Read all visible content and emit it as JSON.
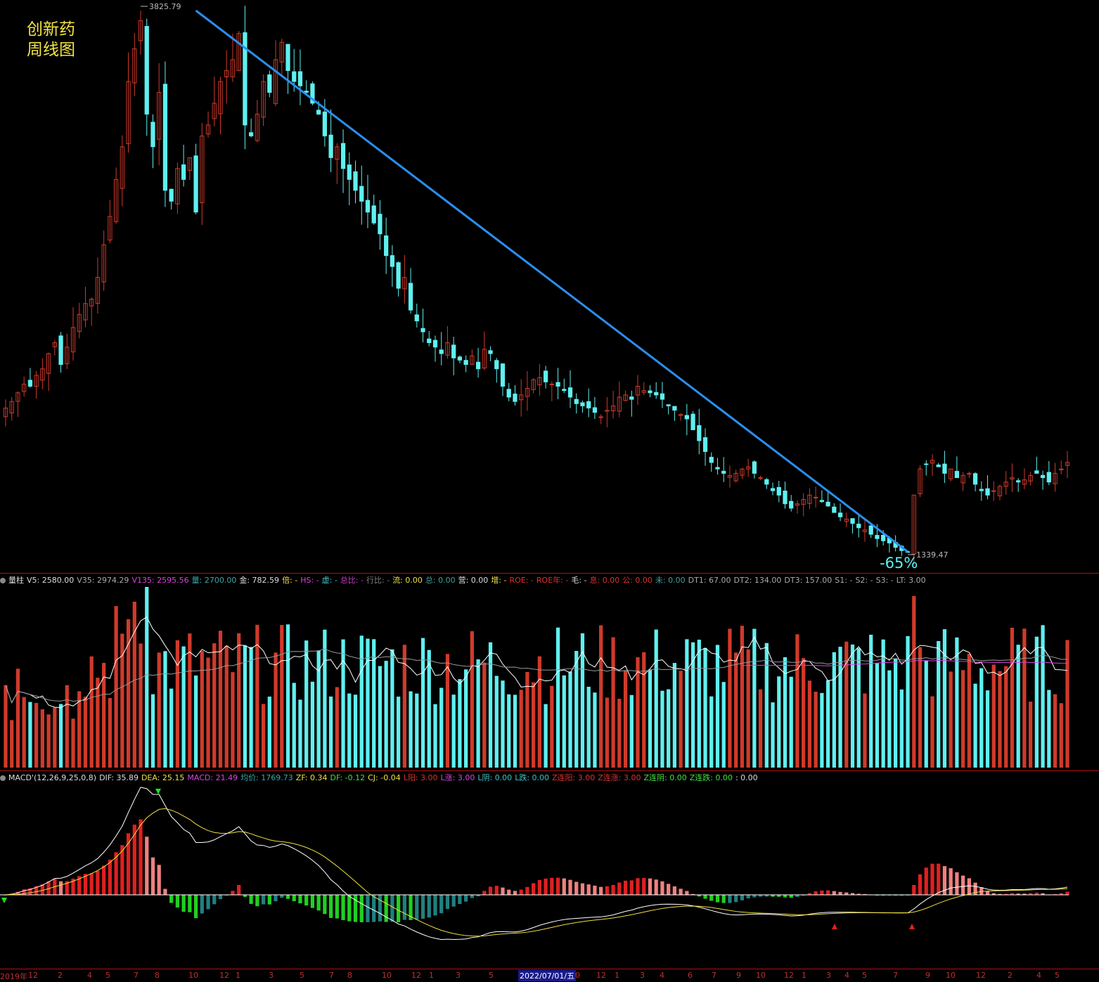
{
  "title": {
    "line1": "创新药",
    "line2": "周线图"
  },
  "annotations": {
    "high_label": "3825.79",
    "low_label": "1339.47",
    "drop_label": "-65%"
  },
  "volume_bar": {
    "items": [
      {
        "t": "量柱",
        "c": "#dddddd"
      },
      {
        "t": "V5: 2580.00",
        "c": "#dddddd"
      },
      {
        "t": "V35: 2974.29",
        "c": "#aaaaaa"
      },
      {
        "t": "V135: 2595.56",
        "c": "#e040e0"
      },
      {
        "t": "量: 2700.00",
        "c": "#3aa8a8"
      },
      {
        "t": "金: 782.59",
        "c": "#dddddd"
      },
      {
        "t": "倍: -",
        "c": "#f0e040"
      },
      {
        "t": "HS: -",
        "c": "#e040e0"
      },
      {
        "t": "虚: -",
        "c": "#40c0c0"
      },
      {
        "t": "总比: -",
        "c": "#c040c0"
      },
      {
        "t": "行比: -",
        "c": "#808080"
      },
      {
        "t": "流: 0.00",
        "c": "#f0e040"
      },
      {
        "t": "总: 0.00",
        "c": "#40a0a0"
      },
      {
        "t": "营: 0.00",
        "c": "#dddddd"
      },
      {
        "t": "增: -",
        "c": "#f0e040"
      },
      {
        "t": "ROE: -",
        "c": "#e03030"
      },
      {
        "t": "ROE年: -",
        "c": "#e03030"
      },
      {
        "t": "毛: -",
        "c": "#dddddd"
      },
      {
        "t": "息: 0.00",
        "c": "#e03030"
      },
      {
        "t": "公: 0.00",
        "c": "#e03030"
      },
      {
        "t": "未: 0.00",
        "c": "#40a0a0"
      },
      {
        "t": "DT1: 67.00",
        "c": "#aaaaaa"
      },
      {
        "t": "DT2: 134.00",
        "c": "#aaaaaa"
      },
      {
        "t": "DT3: 157.00",
        "c": "#aaaaaa"
      },
      {
        "t": "S1: -",
        "c": "#aaaaaa"
      },
      {
        "t": "S2: -",
        "c": "#aaaaaa"
      },
      {
        "t": "S3: -",
        "c": "#aaaaaa"
      },
      {
        "t": "LT: 3.00",
        "c": "#aaaaaa"
      }
    ]
  },
  "macd_bar": {
    "items": [
      {
        "t": "MACD'(12,26,9,25,0,8)",
        "c": "#dddddd"
      },
      {
        "t": "DIF: 35.89",
        "c": "#dddddd"
      },
      {
        "t": "DEA: 25.15",
        "c": "#f0e040"
      },
      {
        "t": "MACD: 21.49",
        "c": "#e040e0"
      },
      {
        "t": "均价: 1769.73",
        "c": "#3aa8a8"
      },
      {
        "t": "ZF: 0.34",
        "c": "#f0e040"
      },
      {
        "t": "DF: -0.12",
        "c": "#40e040"
      },
      {
        "t": "CJ: -0.04",
        "c": "#f0e040"
      },
      {
        "t": "L阳: 3.00",
        "c": "#e03030"
      },
      {
        "t": "L涨: 3.00",
        "c": "#e040e0"
      },
      {
        "t": "L阴: 0.00",
        "c": "#40c0c0"
      },
      {
        "t": "L跌: 0.00",
        "c": "#40c0c0"
      },
      {
        "t": "Z连阳: 3.00",
        "c": "#e03030"
      },
      {
        "t": "Z连涨: 3.00",
        "c": "#e03030"
      },
      {
        "t": "Z连阴: 0.00",
        "c": "#40e040"
      },
      {
        "t": "Z连跌: 0.00",
        "c": "#40e040"
      },
      {
        "t": ": 0.00",
        "c": "#dddddd"
      }
    ]
  },
  "x_axis": {
    "ticks": [
      "2019年",
      "12",
      "2",
      "4",
      "5",
      "7",
      "8",
      "10",
      "12",
      "1",
      "3",
      "5",
      "7",
      "8",
      "10",
      "12",
      "1",
      "3",
      "5",
      "2022/07/01/五",
      "0",
      "12",
      "1",
      "3",
      "4",
      "6",
      "7",
      "9",
      "10",
      "12",
      "1",
      "3",
      "4",
      "5",
      "7",
      "9",
      "10",
      "12",
      "2",
      "4",
      "5"
    ],
    "highlight": "2022/07/01/五"
  },
  "colors": {
    "up": "#d03a2a",
    "down": "#5ff0f0",
    "trend": "#2a8ff0",
    "dif": "#ffffff",
    "dea": "#f0e040",
    "v135": "#e040e0",
    "v35": "#999999"
  },
  "chart_data": {
    "type": "candlestick",
    "price": {
      "closes": [
        2000,
        2030,
        2070,
        2110,
        2100,
        2150,
        2180,
        2250,
        2300,
        2200,
        2280,
        2370,
        2430,
        2480,
        2500,
        2600,
        2750,
        2880,
        3050,
        3200,
        3500,
        3650,
        3780,
        3350,
        3200,
        3450,
        3000,
        2950,
        3100,
        3050,
        3150,
        2900,
        3250,
        3300,
        3400,
        3500,
        3550,
        3600,
        3720,
        3300,
        3250,
        3350,
        3500,
        3450,
        3600,
        3680,
        3550,
        3500,
        3480,
        3450,
        3400,
        3350,
        3250,
        3150,
        3200,
        3100,
        3050,
        3000,
        2950,
        2900,
        2850,
        2800,
        2700,
        2650,
        2550,
        2600,
        2450,
        2400,
        2350,
        2300,
        2280,
        2250,
        2300,
        2230,
        2220,
        2200,
        2240,
        2180,
        2270,
        2250,
        2180,
        2100,
        2050,
        2030,
        2060,
        2090,
        2130,
        2140,
        2120,
        2110,
        2100,
        2080,
        2050,
        2020,
        2010,
        2000,
        1980,
        1960,
        1990,
        2010,
        2050,
        2060,
        2040,
        2100,
        2080,
        2070,
        2060,
        2040,
        2010,
        1990,
        1970,
        1950,
        1900,
        1850,
        1800,
        1750,
        1720,
        1700,
        1690,
        1700,
        1720,
        1730,
        1700,
        1680,
        1650,
        1620,
        1600,
        1560,
        1540,
        1560,
        1580,
        1600,
        1590,
        1570,
        1550,
        1520,
        1500,
        1490,
        1470,
        1450,
        1440,
        1420,
        1400,
        1390,
        1380,
        1360,
        1345,
        1339.47,
        1600,
        1720,
        1740,
        1760,
        1730,
        1700,
        1720,
        1680,
        1690,
        1700,
        1650,
        1620,
        1600,
        1620,
        1640,
        1660,
        1680,
        1660,
        1670,
        1690,
        1700,
        1680,
        1660,
        1700,
        1720,
        1750
      ],
      "high": 3825.79,
      "low": 1339.47,
      "drawdown_pct": -65,
      "ylim": [
        1339.47,
        3825.79
      ]
    },
    "volume": {
      "series": [
        "V5",
        "V35",
        "V135"
      ],
      "last": {
        "V5": 2580.0,
        "V35": 2974.29,
        "V135": 2595.56,
        "量": 2700.0
      }
    },
    "macd": {
      "params": "12,26,9,25,0,8",
      "last": {
        "DIF": 35.89,
        "DEA": 25.15,
        "MACD": 21.49
      }
    }
  }
}
